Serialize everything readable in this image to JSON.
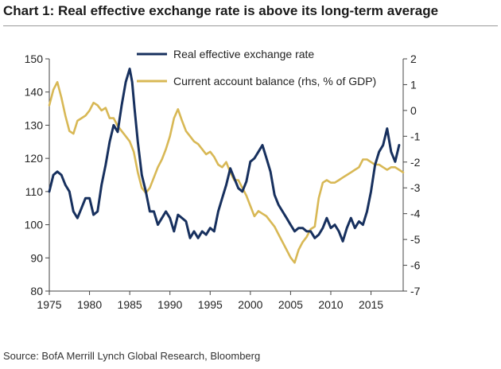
{
  "title": "Chart 1: Real effective exchange rate is above its long-term average",
  "source": "Source: BofA Merrill Lynch Global Research, Bloomberg",
  "chart_data": {
    "type": "line",
    "title": "Chart 1: Real effective exchange rate is above its long-term average",
    "xlim": [
      1975,
      2019
    ],
    "ylim_left": [
      80,
      150
    ],
    "ylim_right": [
      -7,
      2
    ],
    "x_ticks": [
      "1975",
      "1980",
      "1985",
      "1990",
      "1995",
      "2000",
      "2005",
      "2010",
      "2015"
    ],
    "y_ticks_left": [
      "150",
      "140",
      "130",
      "120",
      "110",
      "100",
      "90",
      "80"
    ],
    "y_ticks_right": [
      "2",
      "1",
      "0",
      "-1",
      "-2",
      "-3",
      "-4",
      "-5",
      "-6",
      "-7"
    ],
    "grid": false,
    "legend_position": "top-center",
    "series": [
      {
        "name": "Real effective exchange rate",
        "axis": "left",
        "color": "#17305e",
        "x": [
          1975,
          1975.5,
          1976,
          1976.5,
          1977,
          1977.5,
          1978,
          1978.5,
          1979,
          1979.5,
          1980,
          1980.5,
          1981,
          1981.5,
          1982,
          1982.5,
          1983,
          1983.5,
          1984,
          1984.5,
          1985,
          1985.3,
          1985.6,
          1986,
          1986.5,
          1987,
          1987.5,
          1988,
          1988.5,
          1989,
          1989.5,
          1990,
          1990.5,
          1991,
          1991.5,
          1992,
          1992.5,
          1993,
          1993.5,
          1994,
          1994.5,
          1995,
          1995.5,
          1996,
          1996.5,
          1997,
          1997.5,
          1998,
          1998.5,
          1999,
          1999.5,
          2000,
          2000.5,
          2001,
          2001.5,
          2002,
          2002.5,
          2003,
          2003.5,
          2004,
          2004.5,
          2005,
          2005.5,
          2006,
          2006.5,
          2007,
          2007.5,
          2008,
          2008.5,
          2009,
          2009.5,
          2010,
          2010.5,
          2011,
          2011.5,
          2012,
          2012.5,
          2013,
          2013.5,
          2014,
          2014.5,
          2015,
          2015.5,
          2016,
          2016.5,
          2017,
          2017.5,
          2018,
          2018.5
        ],
        "values": [
          110,
          115,
          116,
          115,
          112,
          110,
          104,
          102,
          105,
          108,
          108,
          103,
          104,
          112,
          118,
          125,
          130,
          128,
          136,
          143,
          147,
          143,
          135,
          125,
          115,
          110,
          104,
          104,
          100,
          102,
          104,
          102,
          98,
          103,
          102,
          101,
          96,
          98,
          96,
          98,
          97,
          99,
          98,
          104,
          108,
          112,
          117,
          114,
          111,
          110,
          113,
          119,
          120,
          122,
          124,
          120,
          116,
          109,
          106,
          104,
          102,
          100,
          98,
          99,
          99,
          98,
          98,
          96,
          97,
          99,
          102,
          99,
          100,
          98,
          95,
          99,
          102,
          99,
          101,
          100,
          104,
          110,
          118,
          122,
          124,
          129,
          122,
          119,
          124
        ]
      },
      {
        "name": "Current account balance (rhs, % of GDP)",
        "axis": "right",
        "color": "#d8b855",
        "x": [
          1975,
          1975.5,
          1976,
          1976.5,
          1977,
          1977.5,
          1978,
          1978.5,
          1979,
          1979.5,
          1980,
          1980.5,
          1981,
          1981.5,
          1982,
          1982.5,
          1983,
          1983.5,
          1984,
          1984.5,
          1985,
          1985.5,
          1986,
          1986.5,
          1987,
          1987.5,
          1988,
          1988.5,
          1989,
          1989.5,
          1990,
          1990.5,
          1991,
          1991.5,
          1992,
          1992.5,
          1993,
          1993.5,
          1994,
          1994.5,
          1995,
          1995.5,
          1996,
          1996.5,
          1997,
          1997.5,
          1998,
          1998.5,
          1999,
          1999.5,
          2000,
          2000.5,
          2001,
          2001.5,
          2002,
          2002.5,
          2003,
          2003.5,
          2004,
          2004.5,
          2005,
          2005.5,
          2006,
          2006.5,
          2007,
          2007.5,
          2008,
          2008.5,
          2009,
          2009.5,
          2010,
          2010.5,
          2011,
          2011.5,
          2012,
          2012.5,
          2013,
          2013.5,
          2014,
          2014.5,
          2015,
          2015.5,
          2016,
          2016.5,
          2017,
          2017.5,
          2018,
          2018.5,
          2019
        ],
        "values": [
          0.2,
          0.8,
          1.1,
          0.5,
          -0.2,
          -0.8,
          -0.9,
          -0.4,
          -0.3,
          -0.2,
          0,
          0.3,
          0.2,
          0,
          0.1,
          -0.3,
          -0.3,
          -0.6,
          -0.8,
          -1.0,
          -1.2,
          -1.6,
          -2.4,
          -3.0,
          -3.2,
          -3.0,
          -2.6,
          -2.2,
          -1.9,
          -1.5,
          -1.0,
          -0.3,
          0.05,
          -0.4,
          -0.8,
          -1.0,
          -1.2,
          -1.3,
          -1.5,
          -1.7,
          -1.6,
          -1.8,
          -2.1,
          -2.2,
          -2.0,
          -2.4,
          -2.7,
          -2.7,
          -3.0,
          -3.3,
          -3.7,
          -4.1,
          -3.9,
          -4.0,
          -4.1,
          -4.3,
          -4.5,
          -4.8,
          -5.1,
          -5.4,
          -5.7,
          -5.9,
          -5.4,
          -5.1,
          -4.9,
          -4.6,
          -4.5,
          -3.4,
          -2.8,
          -2.7,
          -2.8,
          -2.8,
          -2.7,
          -2.6,
          -2.5,
          -2.4,
          -2.3,
          -2.2,
          -1.9,
          -1.9,
          -2.0,
          -2.1,
          -2.1,
          -2.2,
          -2.3,
          -2.2,
          -2.2,
          -2.3,
          -2.4
        ]
      }
    ]
  }
}
